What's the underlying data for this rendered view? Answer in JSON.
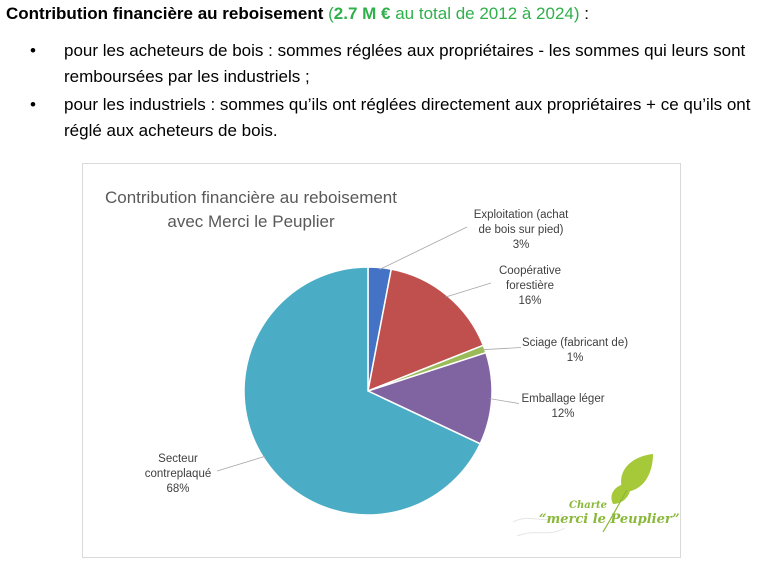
{
  "heading": {
    "prefix": "Contribution financière au reboisement",
    "open_paren": "(",
    "amount": "2.7 M €",
    "rest": "au total de 2012 à 2024)",
    "suffix": " :"
  },
  "bullets": [
    {
      "text": "pour les acheteurs de bois : sommes réglées aux propriétaires - les sommes qui leurs sont remboursées par les industriels ;"
    },
    {
      "text": "pour les industriels : sommes qu’ils ont réglées directement aux propriétaires + ce qu’ils ont réglé aux acheteurs de bois."
    }
  ],
  "bullet_glyph": "•",
  "chart_data": {
    "type": "pie",
    "title_lines": [
      "Contribution financière au reboisement",
      "avec Merci le Peuplier"
    ],
    "slices": [
      {
        "label_lines": [
          "Exploitation (achat",
          "de bois sur pied)"
        ],
        "value": 3,
        "value_label": "3%",
        "color": "#4472c4"
      },
      {
        "label_lines": [
          "Coopérative",
          "forestière"
        ],
        "value": 16,
        "value_label": "16%",
        "color": "#c0504d"
      },
      {
        "label_lines": [
          "Sciage (fabricant de)"
        ],
        "value": 1,
        "value_label": "1%",
        "color": "#9bbb59"
      },
      {
        "label_lines": [
          "Emballage léger"
        ],
        "value": 12,
        "value_label": "12%",
        "color": "#8064a2"
      },
      {
        "label_lines": [
          "Secteur",
          "contreplaqué"
        ],
        "value": 68,
        "value_label": "68%",
        "color": "#4bacc6"
      }
    ],
    "start_angle_deg": 0,
    "direction": "clockwise",
    "legend": "none",
    "data_labels": "outside-with-leader-lines"
  },
  "logo": {
    "line1": "Charte",
    "line2": "“merci le Peuplier”",
    "leaf_color": "#a6c93a"
  }
}
